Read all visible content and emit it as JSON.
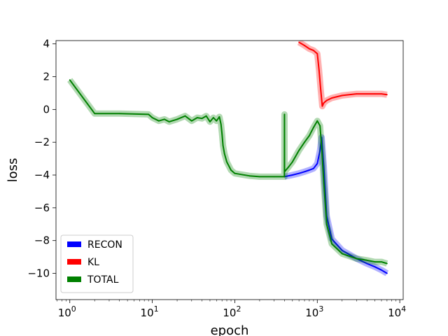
{
  "chart_data": {
    "type": "line",
    "xscale": "log",
    "xlim": [
      0.68,
      11000
    ],
    "ylim": [
      -11.6,
      4.2
    ],
    "xlabel": "epoch",
    "ylabel": "loss",
    "x_ticks": [
      {
        "value": 1,
        "base": "10",
        "exp": "0"
      },
      {
        "value": 10,
        "base": "10",
        "exp": "1"
      },
      {
        "value": 100,
        "base": "10",
        "exp": "2"
      },
      {
        "value": 1000,
        "base": "10",
        "exp": "3"
      },
      {
        "value": 10000,
        "base": "10",
        "exp": "4"
      }
    ],
    "y_ticks": [
      {
        "value": 4,
        "label": "4"
      },
      {
        "value": 2,
        "label": "2"
      },
      {
        "value": 0,
        "label": "0"
      },
      {
        "value": -2,
        "label": "−2"
      },
      {
        "value": -4,
        "label": "−4"
      },
      {
        "value": -6,
        "label": "−6"
      },
      {
        "value": -8,
        "label": "−8"
      },
      {
        "value": -10,
        "label": "−10"
      }
    ],
    "legend": {
      "position": "lower-left",
      "entries": [
        {
          "label": "RECON",
          "color": "#0000ff"
        },
        {
          "label": "KL",
          "color": "#ff0000"
        },
        {
          "label": "TOTAL",
          "color": "#008000"
        }
      ]
    },
    "series": [
      {
        "name": "RECON",
        "color": "#0000ff",
        "x": [
          400,
          500,
          600,
          700,
          800,
          900,
          1000,
          1080,
          1130,
          1200,
          1300,
          1500,
          2000,
          3000,
          4000,
          5000,
          6000,
          7000
        ],
        "y": [
          -4.1,
          -4.0,
          -3.9,
          -3.8,
          -3.7,
          -3.6,
          -3.3,
          -2.5,
          -1.7,
          -3.5,
          -6.5,
          -7.9,
          -8.6,
          -9.1,
          -9.4,
          -9.6,
          -9.8,
          -10.0
        ]
      },
      {
        "name": "KL",
        "color": "#ff0000",
        "x": [
          600,
          700,
          800,
          900,
          1000,
          1050,
          1100,
          1150,
          1200,
          1300,
          1500,
          2000,
          3000,
          4000,
          5000,
          6000,
          7000
        ],
        "y": [
          4.1,
          3.9,
          3.7,
          3.6,
          3.4,
          2.4,
          1.2,
          0.2,
          0.4,
          0.55,
          0.7,
          0.85,
          0.95,
          0.95,
          0.95,
          0.95,
          0.9
        ]
      },
      {
        "name": "TOTAL",
        "color": "#008000",
        "x": [
          1,
          2,
          4,
          9,
          10,
          12,
          14,
          16,
          20,
          25,
          30,
          35,
          40,
          45,
          50,
          55,
          60,
          65,
          68,
          70,
          72,
          75,
          80,
          90,
          100,
          150,
          200,
          300,
          399,
          400,
          401,
          450,
          500,
          600,
          700,
          800,
          900,
          1000,
          1080,
          1130,
          1200,
          1300,
          1500,
          2000,
          3000,
          4000,
          5000,
          6000,
          7000
        ],
        "y": [
          1.8,
          -0.25,
          -0.25,
          -0.3,
          -0.5,
          -0.7,
          -0.6,
          -0.75,
          -0.6,
          -0.4,
          -0.7,
          -0.5,
          -0.55,
          -0.4,
          -0.75,
          -0.5,
          -0.7,
          -0.45,
          -0.9,
          -1.5,
          -2.2,
          -2.7,
          -3.2,
          -3.7,
          -3.9,
          -4.05,
          -4.1,
          -4.1,
          -4.1,
          -0.3,
          -3.8,
          -3.5,
          -3.2,
          -2.5,
          -2.0,
          -1.6,
          -1.1,
          -0.7,
          -1.0,
          -2.3,
          -4.5,
          -7.0,
          -8.2,
          -8.8,
          -9.1,
          -9.2,
          -9.3,
          -9.3,
          -9.4
        ]
      }
    ]
  }
}
